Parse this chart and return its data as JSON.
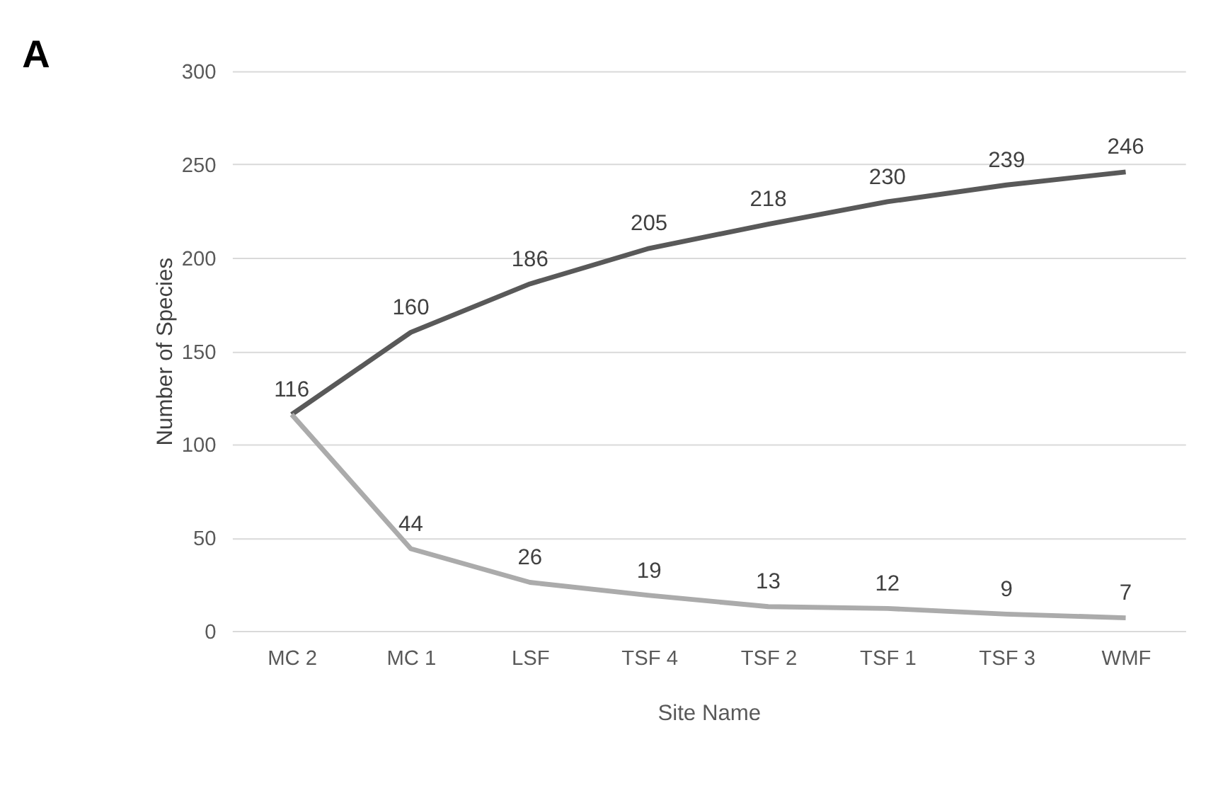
{
  "chart_data": {
    "type": "line",
    "title": "A",
    "xlabel": "Site Name",
    "ylabel": "Number of Species",
    "categories": [
      "MC 2",
      "MC 1",
      "LSF",
      "TSF 4",
      "TSF 2",
      "TSF 1",
      "TSF 3",
      "WMF"
    ],
    "series": [
      {
        "color": "#595959",
        "values": [
          116,
          160,
          186,
          205,
          218,
          230,
          239,
          246
        ],
        "value_labels": [
          "116",
          "160",
          "186",
          "205",
          "218",
          "230",
          "239",
          "246"
        ]
      },
      {
        "color": "#ababab",
        "values": [
          116,
          44,
          26,
          19,
          13,
          12,
          9,
          7
        ],
        "value_labels": [
          null,
          "44",
          "26",
          "19",
          "13",
          "12",
          "9",
          "7"
        ]
      }
    ],
    "ylim": [
      0,
      300
    ],
    "yticks": [
      0,
      50,
      100,
      150,
      200,
      250,
      300
    ],
    "grid": "y",
    "legend": false,
    "marker": "none",
    "line_style": "solid"
  }
}
